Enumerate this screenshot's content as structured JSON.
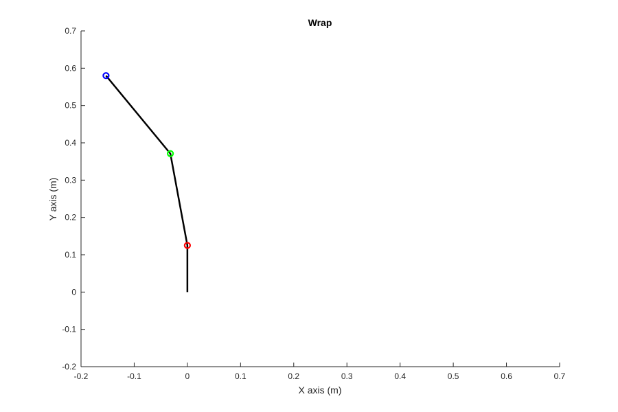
{
  "chart_data": {
    "type": "line",
    "title": "Wrap",
    "xlabel": "X axis (m)",
    "ylabel": "Y axis (m)",
    "xlim": [
      -0.2,
      0.7
    ],
    "ylim": [
      -0.2,
      0.7
    ],
    "xticks": [
      -0.2,
      -0.1,
      0,
      0.1,
      0.2,
      0.3,
      0.4,
      0.5,
      0.6,
      0.7
    ],
    "yticks": [
      -0.2,
      -0.1,
      0,
      0.1,
      0.2,
      0.3,
      0.4,
      0.5,
      0.6,
      0.7
    ],
    "xtick_labels": [
      "-0.2",
      "-0.1",
      "0",
      "0.1",
      "0.2",
      "0.3",
      "0.4",
      "0.5",
      "0.6",
      "0.7"
    ],
    "ytick_labels": [
      "-0.2",
      "-0.1",
      "0",
      "0.1",
      "0.2",
      "0.3",
      "0.4",
      "0.5",
      "0.6",
      "0.7"
    ],
    "grid": false,
    "legend": "none",
    "series": [
      {
        "x": [
          0,
          0,
          -0.032,
          -0.153
        ],
        "y": [
          0,
          0.125,
          0.371,
          0.58
        ],
        "color": "#000000"
      }
    ],
    "markers": [
      {
        "x": 0,
        "y": 0.125,
        "color": "#ff0000",
        "shape": "circle"
      },
      {
        "x": -0.032,
        "y": 0.371,
        "color": "#00ff00",
        "shape": "circle"
      },
      {
        "x": -0.153,
        "y": 0.58,
        "color": "#0000ff",
        "shape": "circle"
      }
    ],
    "axis_color": "#262626"
  }
}
